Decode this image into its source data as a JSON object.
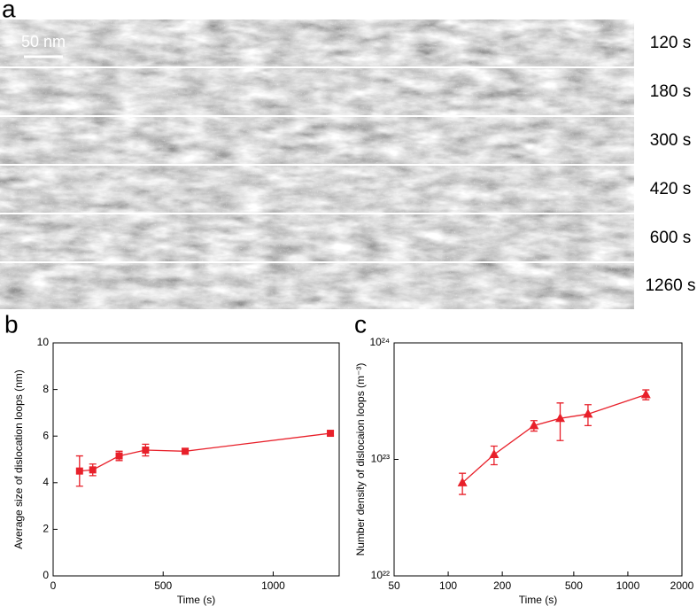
{
  "panel_a": {
    "label": "a",
    "scale_bar": "50 nm",
    "times": [
      "120 s",
      "180 s",
      "300 s",
      "420 s",
      "600 s",
      "1260 s"
    ]
  },
  "chart_data": [
    {
      "type": "line",
      "panel_label": "b",
      "xlabel": "Time (s)",
      "ylabel": "Average size of dislocation loops (nm)",
      "x": [
        120,
        180,
        300,
        420,
        600,
        1260
      ],
      "values": [
        4.5,
        4.55,
        5.15,
        5.4,
        5.35,
        6.12
      ],
      "errors": [
        0.65,
        0.25,
        0.2,
        0.25,
        0.12,
        0.1
      ],
      "color": "#e8202a",
      "marker": "square",
      "xscale": "linear",
      "yscale": "linear",
      "xlim": [
        0,
        1300
      ],
      "xticks": [
        0,
        500,
        1000
      ],
      "ylim": [
        0,
        10
      ],
      "yticks": [
        0,
        2,
        4,
        6,
        8,
        10
      ]
    },
    {
      "type": "line",
      "panel_label": "c",
      "xlabel": "Time (s)",
      "ylabel": "Number density of dislocaion loops (m⁻³)",
      "x": [
        120,
        180,
        300,
        420,
        600,
        1260
      ],
      "values": [
        6.3e+22,
        1.1e+23,
        1.95e+23,
        2.25e+23,
        2.45e+23,
        3.6e+23
      ],
      "errors": [
        1.3e+22,
        2e+22,
        2e+22,
        8e+22,
        5e+22,
        3.5e+22
      ],
      "color": "#e8202a",
      "marker": "triangle",
      "xscale": "log",
      "yscale": "log",
      "xlim": [
        50,
        2000
      ],
      "xticks": [
        50,
        100,
        200,
        500,
        1000,
        2000
      ],
      "ylim": [
        1e+22,
        1e+24
      ],
      "yticks": [
        {
          "value": 1e+22,
          "label": "10²²"
        },
        {
          "value": 1e+23,
          "label": "10²³"
        },
        {
          "value": 1e+24,
          "label": "10²⁴"
        }
      ]
    }
  ]
}
